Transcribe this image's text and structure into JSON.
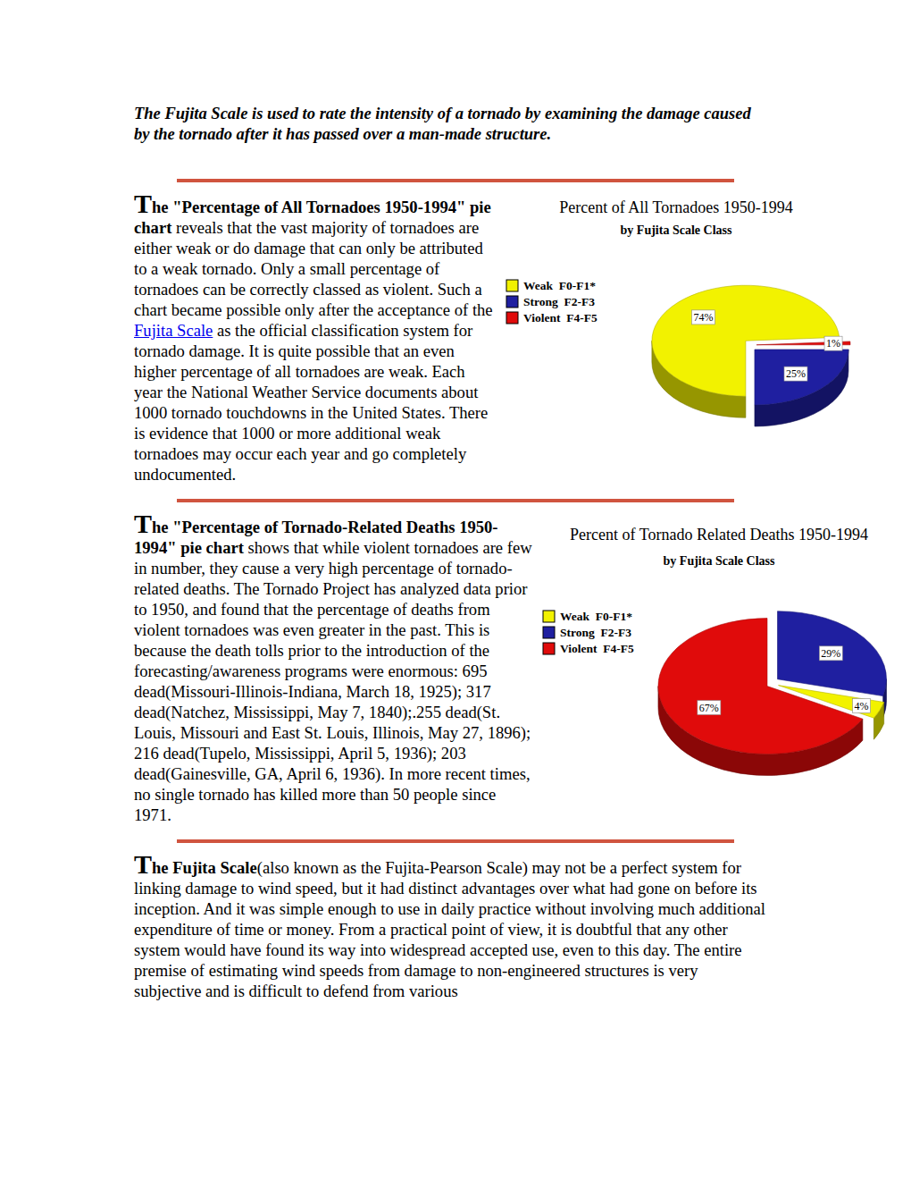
{
  "intro": "The Fujita Scale is used to rate the intensity of a tornado by examining the damage caused by the tornado after it has passed over a man-made structure.",
  "sections": [
    {
      "runs": [
        {
          "text": "The \"Percentage of All Tornadoes 1950-1994\" pie chart",
          "style": "bold"
        },
        {
          "text": " reveals that the vast majority of tornadoes are either weak or do damage that can only be attributed to a weak tornado. Only a small percentage of tornadoes can be correctly classed as violent. Such a chart became possible only after the acceptance of the ",
          "style": "normal"
        },
        {
          "text": "Fujita Scale",
          "style": "link"
        },
        {
          "text": " as the official classification system for tornado damage. It is quite possible that an even higher percentage of all tornadoes are weak. Each year the National Weather Service documents about 1000 tornado touchdowns in the United States. There is evidence that 1000 or more additional weak tornadoes may occur each year and go completely undocumented.",
          "style": "normal"
        }
      ]
    },
    {
      "runs": [
        {
          "text": "The \"Percentage of Tornado-Related Deaths 1950-1994\" pie chart",
          "style": "bold"
        },
        {
          "text": " shows that while violent tornadoes are few in number, they cause a very high percentage of tornado-related deaths. The Tornado Project has analyzed data prior to 1950, and found that the percentage of deaths from violent tornadoes was even greater in the past. This is because the death tolls prior to the introduction of the forecasting/awareness programs were enormous: 695 dead(Missouri-Illinois-Indiana, March 18, 1925); 317 dead(Natchez, Mississippi, May 7, 1840);.255 dead(St. Louis, Missouri and East St. Louis, Illinois, May 27, 1896); 216 dead(Tupelo, Mississippi, April 5, 1936); 203 dead(Gainesville, GA, April 6, 1936). In more recent times, no single tornado has killed more than 50 people since 1971.",
          "style": "normal"
        }
      ]
    },
    {
      "runs": [
        {
          "text": "The Fujita Scale",
          "style": "bold"
        },
        {
          "text": "(also known as the Fujita-Pearson Scale) may not be a perfect system for linking damage to wind speed, but it had distinct advantages over what had gone on before its inception. And it was simple enough to use in daily practice without involving much additional expenditure of time or money. From a practical point of view, it is doubtful that any other system would have found its way into widespread accepted use, even to this day. The entire premise of estimating wind speeds from damage to non-engineered structures is very subjective and is difficult to defend from various",
          "style": "normal"
        }
      ]
    }
  ],
  "chart_data": [
    {
      "type": "pie",
      "title": "Percent of All Tornadoes 1950-1994",
      "subtitle": "by Fujita Scale Class",
      "categories": [
        "Weak  F0-F1*",
        "Strong  F2-F3",
        "Violent  F4-F5"
      ],
      "values": [
        74,
        25,
        1
      ],
      "value_labels": [
        "74%",
        "25%",
        "1%"
      ],
      "colors": [
        "#f2f200",
        "#1f1fa0",
        "#e00b0b"
      ],
      "data_labels": true,
      "legend": "left"
    },
    {
      "type": "pie",
      "title": "Percent of Tornado Related Deaths 1950-1994",
      "subtitle": "by Fujita Scale Class",
      "categories": [
        "Weak  F0-F1*",
        "Strong  F2-F3",
        "Violent  F4-F5"
      ],
      "values": [
        4,
        29,
        67
      ],
      "value_labels": [
        "4%",
        "29%",
        "67%"
      ],
      "colors": [
        "#f2f200",
        "#1f1fa0",
        "#e00b0b"
      ],
      "data_labels": true,
      "legend": "left"
    }
  ]
}
